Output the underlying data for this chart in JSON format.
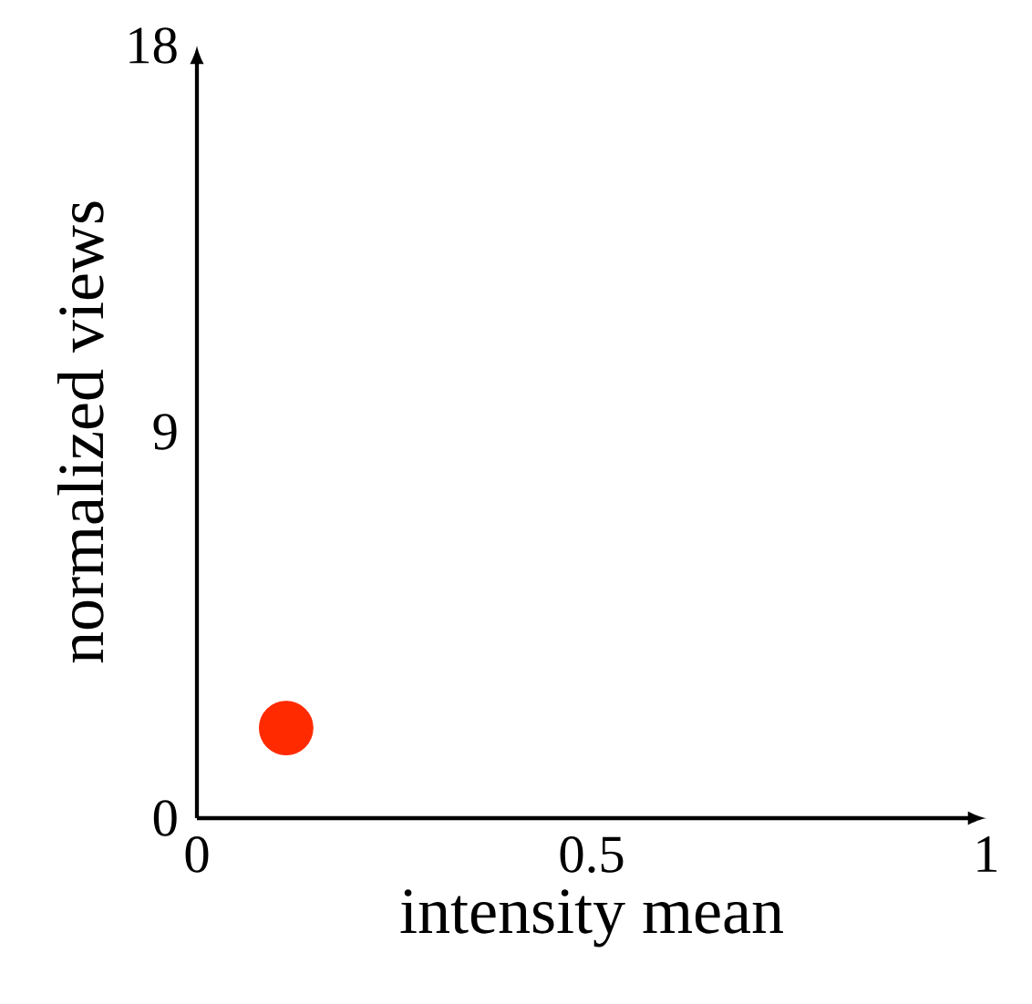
{
  "chart_data": {
    "type": "scatter",
    "xlabel": "intensity mean",
    "ylabel": "normalized views",
    "x": [
      0.113
    ],
    "values": [
      2.1
    ],
    "color": "#ff2a00",
    "xlim": [
      0,
      1
    ],
    "ylim": [
      0,
      18
    ],
    "xticks": [
      0,
      0.5,
      1
    ],
    "yticks": [
      0,
      9,
      18
    ]
  }
}
